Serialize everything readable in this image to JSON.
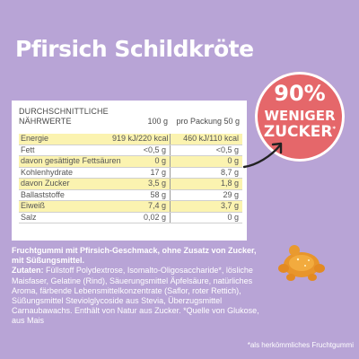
{
  "title": "Pfirsich Schildkröte",
  "table": {
    "heading_line1": "DURCHSCHNITTLICHE",
    "heading_line2": "NÄHRWERTE",
    "col_100g": "100 g",
    "col_pack": "pro Packung 50 g",
    "rows": [
      {
        "label": "Energie",
        "v100": "919 kJ/220 kcal",
        "vpack": "460 kJ/110 kcal",
        "highlight": true
      },
      {
        "label": "Fett",
        "v100": "<0,5 g",
        "vpack": "<0,5 g",
        "highlight": false
      },
      {
        "label": "davon gesättigte Fettsäuren",
        "v100": "0 g",
        "vpack": "0 g",
        "highlight": true
      },
      {
        "label": "Kohlenhydrate",
        "v100": "17 g",
        "vpack": "8,7 g",
        "highlight": false
      },
      {
        "label": "davon Zucker",
        "v100": "3,5 g",
        "vpack": "1,8 g",
        "highlight": true
      },
      {
        "label": "Ballaststoffe",
        "v100": "58 g",
        "vpack": "29 g",
        "highlight": false
      },
      {
        "label": "Eiweiß",
        "v100": "7,4 g",
        "vpack": "3,7 g",
        "highlight": true
      },
      {
        "label": "Salz",
        "v100": "0,02 g",
        "vpack": "0 g",
        "highlight": false
      }
    ]
  },
  "badge": {
    "line1": "90%",
    "line2": "WENIGER",
    "line3": "ZUCKER",
    "star": "*"
  },
  "description": {
    "bold": "Fruchtgummi mit Pfirsich-Geschmack, ohne Zusatz von Zucker, mit Süßungsmittel.",
    "zutaten_label": "Zutaten:",
    "zutaten": " Füllstoff Polydextrose, Isomalto-Oligosaccharide*, lösliche Maisfaser, Gelatine (Rind), Säuerungsmittel Äpfelsäure, natürliches Aroma, färbende Lebensmittelkonzentrate (Saflor, roter Rettich), Süßungsmittel Steviolglycoside aus Stevia, Überzugsmittel Carnaubawachs. Enthält von Natur aus Zucker. *Quelle von Glukose, aus Mais"
  },
  "footnote": "*als herkömmliches Fruchtgummi",
  "colors": {
    "background": "#b8a4d6",
    "badge": "#e5676a",
    "highlight": "#fbf3b0"
  }
}
